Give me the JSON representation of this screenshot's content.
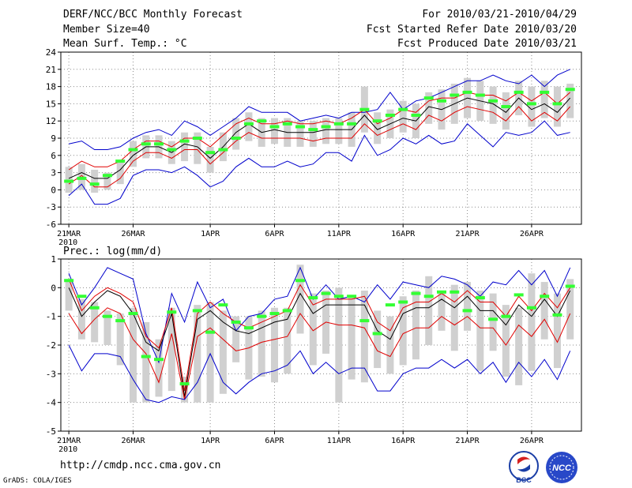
{
  "header": {
    "title": "DERF/NCC/BCC Monthly Forecast",
    "member_size": "Member Size=40",
    "variable_label": "Mean Surf. Temp.: °C",
    "valid_period": "For 2010/03/21-2010/04/29",
    "fcst_started": "Fcst Started Refer Date 2010/03/20",
    "fcst_produced": "Fcst Produced Date 2010/03/21"
  },
  "footer": {
    "url": "http://cmdp.ncc.cma.gov.cn",
    "grads": "GrADS: COLA/IGES",
    "logo_bcc_text": "BCC",
    "logo_ncc_text": "NCC"
  },
  "colors": {
    "ensemble_range": "#0000cc",
    "mean": "#000000",
    "spread": "#e00000",
    "box": "#d0d0d0",
    "observed": "#33ff33",
    "grid": "#8c8c8c"
  },
  "chart_data": [
    {
      "type": "box-ensemble",
      "title": "Mean Surf. Temp.: °C",
      "ylim": [
        -6,
        24
      ],
      "yticks": [
        -6,
        -3,
        0,
        3,
        6,
        9,
        12,
        15,
        18,
        21,
        24
      ],
      "x_tick_labels": [
        {
          "day": 1,
          "label": "21MAR",
          "sub": "2010"
        },
        {
          "day": 6,
          "label": "26MAR"
        },
        {
          "day": 12,
          "label": "1APR"
        },
        {
          "day": 17,
          "label": "6APR"
        },
        {
          "day": 22,
          "label": "11APR"
        },
        {
          "day": 27,
          "label": "16APR"
        },
        {
          "day": 32,
          "label": "21APR"
        },
        {
          "day": 37,
          "label": "26APR"
        }
      ],
      "days": [
        1,
        2,
        3,
        4,
        5,
        6,
        7,
        8,
        9,
        10,
        11,
        12,
        13,
        14,
        15,
        16,
        17,
        18,
        19,
        20,
        21,
        22,
        23,
        24,
        25,
        26,
        27,
        28,
        29,
        30,
        31,
        32,
        33,
        34,
        35,
        36,
        37,
        38,
        39,
        40
      ],
      "series": [
        {
          "name": "ensemble-max",
          "values": [
            8,
            8.5,
            7,
            7,
            7.5,
            9,
            10,
            10.5,
            9.5,
            12,
            11,
            9.5,
            11,
            12.5,
            14.5,
            13.5,
            13.5,
            13.5,
            12,
            12.5,
            13,
            12.5,
            13.5,
            13.5,
            14,
            17,
            14,
            15.5,
            16,
            17,
            18,
            19,
            19,
            20,
            19,
            18.5,
            20,
            18,
            20,
            21
          ]
        },
        {
          "name": "upper-spread",
          "values": [
            3.5,
            5,
            4,
            4,
            5,
            7,
            8.5,
            8.5,
            7.5,
            9,
            9,
            7.5,
            9.5,
            11.5,
            12.5,
            11.5,
            11.5,
            12,
            11.5,
            11.5,
            12,
            11.5,
            12.5,
            14,
            11.5,
            12.5,
            14,
            13.5,
            15.5,
            16,
            16,
            17,
            16.5,
            16.5,
            15.5,
            17,
            15.5,
            17,
            15,
            17
          ]
        },
        {
          "name": "ensemble-mean",
          "values": [
            2,
            3,
            2,
            2,
            3.5,
            6,
            7.5,
            7.5,
            6.5,
            8,
            7.5,
            5.5,
            7.5,
            10,
            11.5,
            10,
            10.5,
            10,
            10,
            10,
            10.5,
            10.5,
            10.5,
            13,
            10.5,
            11.5,
            12.5,
            12,
            14.5,
            14,
            15,
            16,
            15.5,
            15,
            13.5,
            16,
            14,
            15,
            13.5,
            16
          ]
        },
        {
          "name": "lower-spread",
          "values": [
            1,
            2.5,
            0.5,
            0.5,
            2,
            5,
            6.5,
            6.5,
            5.5,
            7,
            7,
            4.5,
            6.5,
            8.5,
            10,
            9,
            9,
            9,
            9,
            8.5,
            9,
            9,
            9,
            11.5,
            9.5,
            10.5,
            11.5,
            10.5,
            13,
            12,
            13.5,
            14.5,
            14,
            13.5,
            12,
            14.5,
            12,
            13.5,
            12,
            14.5
          ]
        },
        {
          "name": "ensemble-min",
          "values": [
            -1,
            1,
            -2.5,
            -2.5,
            -1.5,
            2.5,
            3.5,
            3.5,
            3,
            4,
            2.5,
            0.5,
            1.5,
            4,
            5.5,
            4,
            4,
            5,
            4,
            4.5,
            6.5,
            6.5,
            5,
            9.5,
            6,
            7,
            9,
            8,
            9.5,
            8,
            8.5,
            11.5,
            9.5,
            7.5,
            10,
            9.5,
            10,
            12,
            9.5,
            10
          ]
        }
      ],
      "boxes": [
        [
          -0.5,
          4
        ],
        [
          0,
          4.5
        ],
        [
          -0.5,
          3.5
        ],
        [
          0,
          3
        ],
        [
          1,
          5
        ],
        [
          4,
          8.5
        ],
        [
          5.5,
          9.5
        ],
        [
          5.5,
          9.5
        ],
        [
          4.5,
          8.5
        ],
        [
          5,
          10
        ],
        [
          4.5,
          10
        ],
        [
          3,
          7.5
        ],
        [
          5,
          10
        ],
        [
          7,
          12.5
        ],
        [
          8.5,
          13.5
        ],
        [
          7.5,
          12.5
        ],
        [
          8,
          12.5
        ],
        [
          7.5,
          12.5
        ],
        [
          7.5,
          12
        ],
        [
          7.5,
          12
        ],
        [
          8,
          12.5
        ],
        [
          8,
          12.5
        ],
        [
          7.5,
          13.5
        ],
        [
          10,
          18
        ],
        [
          8,
          13.5
        ],
        [
          9,
          14
        ],
        [
          10,
          15.5
        ],
        [
          9,
          15
        ],
        [
          11.5,
          17
        ],
        [
          10.5,
          17.5
        ],
        [
          11.5,
          18.5
        ],
        [
          12.5,
          19.5
        ],
        [
          12,
          19
        ],
        [
          11.5,
          18
        ],
        [
          10.5,
          17
        ],
        [
          13,
          19
        ],
        [
          11,
          18
        ],
        [
          12.5,
          19
        ],
        [
          11,
          18
        ],
        [
          12.5,
          18.5
        ]
      ],
      "observed": [
        1.5,
        2,
        1,
        2.5,
        5,
        7,
        8,
        8,
        7,
        8.5,
        9,
        6.5,
        7,
        9,
        11.5,
        12,
        11,
        11.5,
        11,
        10.5,
        11,
        11.5,
        11.5,
        14,
        12,
        13,
        14,
        13,
        16,
        15.5,
        16.5,
        17,
        16.5,
        15.5,
        14.5,
        17,
        15,
        17,
        15,
        17.5
      ]
    },
    {
      "type": "box-ensemble",
      "title": "Prec.: log(mm/d)",
      "ylim": [
        -5,
        1
      ],
      "yticks": [
        -5,
        -4,
        -3,
        -2,
        -1,
        0,
        1
      ],
      "x_tick_labels": [
        {
          "day": 1,
          "label": "21MAR",
          "sub": "2010"
        },
        {
          "day": 6,
          "label": "26MAR"
        },
        {
          "day": 12,
          "label": "1APR"
        },
        {
          "day": 17,
          "label": "6APR"
        },
        {
          "day": 22,
          "label": "11APR"
        },
        {
          "day": 27,
          "label": "16APR"
        },
        {
          "day": 32,
          "label": "21APR"
        },
        {
          "day": 37,
          "label": "26APR"
        }
      ],
      "days": [
        1,
        2,
        3,
        4,
        5,
        6,
        7,
        8,
        9,
        10,
        11,
        12,
        13,
        14,
        15,
        16,
        17,
        18,
        19,
        20,
        21,
        22,
        23,
        24,
        25,
        26,
        27,
        28,
        29,
        30,
        31,
        32,
        33,
        34,
        35,
        36,
        37,
        38,
        39,
        40
      ],
      "series": [
        {
          "name": "ensemble-max",
          "values": [
            0.5,
            -0.6,
            0,
            0.7,
            0.5,
            0.3,
            -1.6,
            -2.6,
            -0.2,
            -1.2,
            0.2,
            -0.7,
            -0.4,
            -1.5,
            -1,
            -0.9,
            -0.4,
            -0.3,
            0.7,
            -0.4,
            0.1,
            -0.4,
            -0.3,
            -0.5,
            0.1,
            -0.4,
            0.2,
            0.1,
            0,
            0.4,
            0.3,
            0.1,
            -0.3,
            0.2,
            0.1,
            0.6,
            0.1,
            0.6,
            -0.3,
            0.7
          ]
        },
        {
          "name": "upper-spread",
          "values": [
            0.3,
            -0.8,
            -0.3,
            0,
            -0.2,
            -0.5,
            -1.7,
            -2.1,
            -0.7,
            -3.6,
            -0.9,
            -0.5,
            -0.9,
            -1.2,
            -1.4,
            -1.2,
            -1,
            -0.8,
            0.1,
            -0.6,
            -0.4,
            -0.4,
            -0.4,
            -0.3,
            -1.2,
            -1.5,
            -0.7,
            -0.5,
            -0.5,
            -0.2,
            -0.5,
            -0.1,
            -0.5,
            -0.5,
            -1,
            -0.3,
            -0.8,
            -0.2,
            -0.7,
            0
          ]
        },
        {
          "name": "ensemble-mean",
          "values": [
            0,
            -1,
            -0.5,
            -0.1,
            -0.3,
            -0.9,
            -1.9,
            -2.2,
            -0.9,
            -3.8,
            -1.1,
            -0.8,
            -1.2,
            -1.5,
            -1.6,
            -1.4,
            -1.2,
            -1.1,
            -0.2,
            -0.9,
            -0.6,
            -0.6,
            -0.6,
            -0.6,
            -1.5,
            -1.8,
            -0.9,
            -0.7,
            -0.7,
            -0.4,
            -0.7,
            -0.3,
            -0.8,
            -0.8,
            -1.3,
            -0.6,
            -1,
            -0.4,
            -1,
            -0.1
          ]
        },
        {
          "name": "lower-spread",
          "values": [
            -0.9,
            -1.6,
            -1.1,
            -0.7,
            -0.9,
            -1.8,
            -2.3,
            -3.3,
            -1.6,
            -3.9,
            -1.7,
            -1.4,
            -1.8,
            -2.2,
            -2.1,
            -1.9,
            -1.8,
            -1.7,
            -0.9,
            -1.5,
            -1.2,
            -1.3,
            -1.3,
            -1.4,
            -2.2,
            -2.4,
            -1.6,
            -1.4,
            -1.4,
            -1,
            -1.3,
            -1,
            -1.4,
            -1.4,
            -2,
            -1.3,
            -1.7,
            -1.1,
            -1.9,
            -0.9
          ]
        },
        {
          "name": "ensemble-min",
          "values": [
            -2,
            -2.9,
            -2.3,
            -2.3,
            -2.4,
            -3.2,
            -3.9,
            -4,
            -3.8,
            -3.9,
            -3.3,
            -2.3,
            -3.3,
            -3.7,
            -3.3,
            -3,
            -2.9,
            -2.7,
            -2.2,
            -3,
            -2.6,
            -3,
            -2.8,
            -2.8,
            -3.6,
            -3.6,
            -3,
            -2.8,
            -2.8,
            -2.5,
            -2.8,
            -2.5,
            -3,
            -2.6,
            -3.3,
            -2.6,
            -3.1,
            -2.5,
            -3.2,
            -2.2
          ]
        }
      ],
      "boxes": [
        [
          -0.8,
          0.3
        ],
        [
          -1.8,
          -0.4
        ],
        [
          -1.9,
          -0.5
        ],
        [
          -2,
          -0.8
        ],
        [
          -2.7,
          -0.9
        ],
        [
          -4,
          -0.7
        ],
        [
          -4,
          -1.2
        ],
        [
          -3.8,
          -1.8
        ],
        [
          -3.6,
          -0.7
        ],
        [
          -4,
          -3.1
        ],
        [
          -4,
          -0.6
        ],
        [
          -4,
          -0.5
        ],
        [
          -3.7,
          -0.8
        ],
        [
          -2.6,
          -1
        ],
        [
          -3.2,
          -1
        ],
        [
          -3.1,
          -0.8
        ],
        [
          -3.3,
          -0.7
        ],
        [
          -3,
          -0.7
        ],
        [
          -1.6,
          0.8
        ],
        [
          -2.7,
          -0.2
        ],
        [
          -2.3,
          -0.1
        ],
        [
          -4,
          0
        ],
        [
          -3.2,
          -0.3
        ],
        [
          -3.3,
          -0.1
        ],
        [
          -2.8,
          -0.8
        ],
        [
          -3,
          -1
        ],
        [
          -2.7,
          -0.3
        ],
        [
          -2.5,
          -0.1
        ],
        [
          -2,
          0.4
        ],
        [
          -1.5,
          -0.2
        ],
        [
          -2.2,
          0.1
        ],
        [
          -1.5,
          0.2
        ],
        [
          -2.9,
          -0.1
        ],
        [
          -2.2,
          -0.2
        ],
        [
          -3.1,
          -0.6
        ],
        [
          -3.4,
          -0.7
        ],
        [
          -2.9,
          0.5
        ],
        [
          -1.8,
          0.2
        ],
        [
          -2.8,
          -0.2
        ],
        [
          -1.8,
          0.3
        ]
      ],
      "observed": [
        0.25,
        -0.3,
        -0.7,
        -1,
        -1.15,
        -0.9,
        -2.4,
        -2.5,
        -0.85,
        -3.35,
        -0.8,
        -1.55,
        -0.6,
        -1.2,
        -1.4,
        -1,
        -0.9,
        -0.8,
        0.25,
        -0.35,
        -0.2,
        -0.3,
        -0.3,
        -1.15,
        -1.6,
        -0.6,
        -0.5,
        -0.2,
        -0.3,
        -0.15,
        -0.15,
        -0.8,
        -0.35,
        -1.1,
        -1,
        -0.25,
        -0.7,
        -0.3,
        -0.95,
        0.05
      ]
    }
  ]
}
